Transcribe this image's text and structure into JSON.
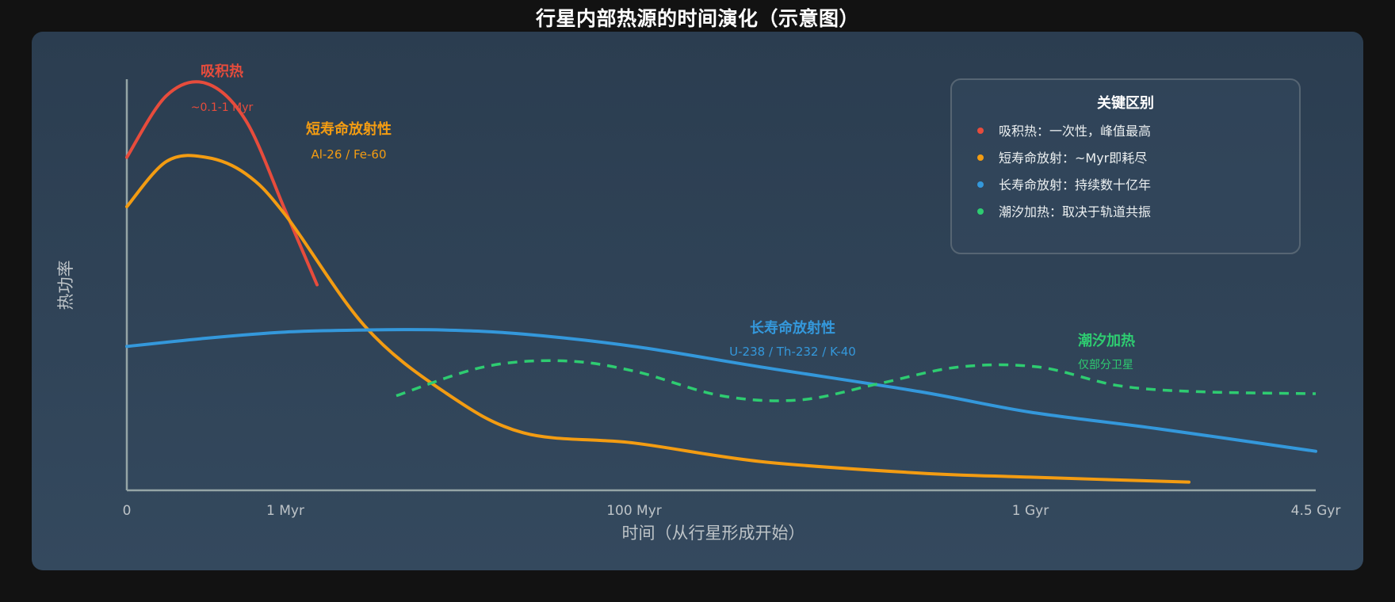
{
  "title": "行星内部热源的时间演化（示意图）",
  "colors": {
    "background": "#121212",
    "panel": "#34495e",
    "axis": "#95a5a6",
    "accretion": "#e74c3c",
    "short_lived": "#f39c12",
    "long_lived": "#3498db",
    "tidal": "#2ecc71"
  },
  "chart_data": {
    "type": "line",
    "xlabel": "时间（从行星形成开始）",
    "ylabel": "热功率",
    "x_scale": "log (schematic)",
    "x_ticks": [
      "0",
      "1 Myr",
      "100 Myr",
      "1 Gyr",
      "4.5 Gyr"
    ],
    "y_ticks": [],
    "grid": false,
    "legend_position": "top-right",
    "series": [
      {
        "name": "吸积热",
        "sublabel": "~0.1-1 Myr",
        "color": "#e74c3c",
        "style": "solid",
        "points": [
          [
            0,
            0.81
          ],
          [
            0.5,
            0.96
          ],
          [
            1.0,
            0.99
          ],
          [
            1.5,
            0.9
          ],
          [
            2.0,
            0.68
          ],
          [
            2.4,
            0.5
          ]
        ]
      },
      {
        "name": "短寿命放射性",
        "sublabel": "Al-26 / Fe-60",
        "color": "#f39c12",
        "style": "solid",
        "points": [
          [
            0,
            0.69
          ],
          [
            0.5,
            0.8
          ],
          [
            1.0,
            0.81
          ],
          [
            1.5,
            0.77
          ],
          [
            2.0,
            0.67
          ],
          [
            3.0,
            0.4
          ],
          [
            4.0,
            0.24
          ],
          [
            5.0,
            0.14
          ],
          [
            6.4,
            0.115
          ],
          [
            8.0,
            0.07
          ],
          [
            10.0,
            0.042
          ],
          [
            11.4,
            0.032
          ],
          [
            13.4,
            0.02
          ]
        ]
      },
      {
        "name": "长寿命放射性",
        "sublabel": "U-238 / Th-232 / K-40",
        "color": "#3498db",
        "style": "solid",
        "points": [
          [
            0,
            0.35
          ],
          [
            1.0,
            0.37
          ],
          [
            2.0,
            0.385
          ],
          [
            3.0,
            0.39
          ],
          [
            4.0,
            0.39
          ],
          [
            5.0,
            0.38
          ],
          [
            6.4,
            0.35
          ],
          [
            8.0,
            0.3
          ],
          [
            10.0,
            0.24
          ],
          [
            11.4,
            0.19
          ],
          [
            13.0,
            0.15
          ],
          [
            15.0,
            0.095
          ]
        ]
      },
      {
        "name": "潮汐加热",
        "sublabel": "仅部分卫星",
        "color": "#2ecc71",
        "style": "dashed",
        "points": [
          [
            3.4,
            0.23
          ],
          [
            4.5,
            0.3
          ],
          [
            5.5,
            0.315
          ],
          [
            6.4,
            0.29
          ],
          [
            7.5,
            0.23
          ],
          [
            8.5,
            0.22
          ],
          [
            9.5,
            0.26
          ],
          [
            10.5,
            0.3
          ],
          [
            11.5,
            0.3
          ],
          [
            12.5,
            0.255
          ],
          [
            13.5,
            0.24
          ],
          [
            15.0,
            0.235
          ]
        ]
      }
    ],
    "legend": {
      "title": "关键区别",
      "items": [
        {
          "text": "吸积热：一次性，峰值最高",
          "color": "#e74c3c"
        },
        {
          "text": "短寿命放射：~Myr即耗尽",
          "color": "#f39c12"
        },
        {
          "text": "长寿命放射：持续数十亿年",
          "color": "#3498db"
        },
        {
          "text": "潮汐加热：取决于轨道共振",
          "color": "#2ecc71"
        }
      ]
    }
  }
}
